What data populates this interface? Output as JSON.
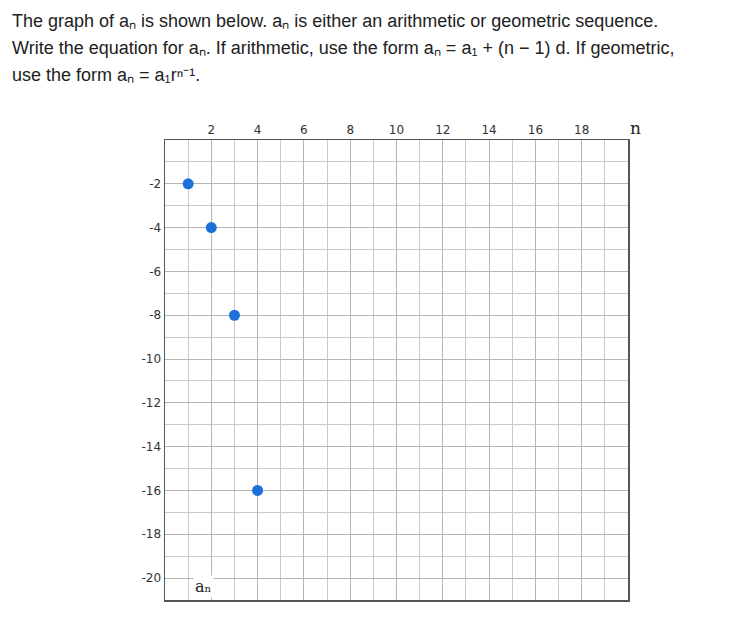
{
  "question": "The graph of aₙ is shown below. aₙ is either an arithmetic or geometric sequence. Write the equation for aₙ. If arithmetic, use the form aₙ = a₁ + (n − 1) d. If geometric, use the form aₙ = a₁rⁿ⁻¹.",
  "chart_data": {
    "type": "scatter",
    "x": [
      1,
      2,
      3,
      4
    ],
    "values": [
      -2,
      -4,
      -8,
      -16
    ],
    "color": "#1e6fd9",
    "marker": "circle",
    "xlabel": "n",
    "ylabel": "aₙ",
    "xlim": [
      0,
      20
    ],
    "xticks": [
      2,
      4,
      6,
      8,
      10,
      12,
      14,
      16,
      18
    ],
    "ylim": [
      -21,
      0
    ],
    "yticks": [
      -2,
      -4,
      -6,
      -8,
      -10,
      -12,
      -14,
      -16,
      -18,
      -20
    ],
    "grid": true,
    "legend": "none"
  }
}
